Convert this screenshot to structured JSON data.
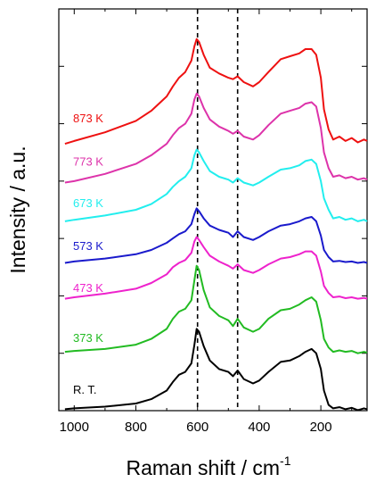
{
  "chart_data": {
    "type": "line",
    "xlabel": "Raman shift / cm",
    "xlabel_superscript": "-1",
    "ylabel": "Intensity / a.u.",
    "xlim": [
      1050,
      50
    ],
    "x_reversed": true,
    "ylim": [
      0,
      14
    ],
    "y_ticks_labeled": false,
    "grid": false,
    "x_ticks": [
      1000,
      800,
      600,
      400,
      200
    ],
    "x_tick_labels": [
      "1000",
      "800",
      "600",
      "400",
      "200"
    ],
    "reference_lines_x": [
      600,
      470
    ],
    "reference_line_style": "dashed",
    "series": [
      {
        "name": "R. T.",
        "color": "#000000",
        "x": [
          1030,
          1000,
          900,
          800,
          750,
          700,
          680,
          660,
          640,
          620,
          610,
          603,
          595,
          580,
          560,
          530,
          500,
          485,
          470,
          450,
          420,
          400,
          370,
          330,
          300,
          270,
          250,
          230,
          215,
          200,
          190,
          175,
          160,
          140,
          120,
          100,
          80,
          60,
          50
        ],
        "y": [
          0.05,
          0.08,
          0.14,
          0.25,
          0.4,
          0.7,
          1.0,
          1.25,
          1.35,
          1.65,
          2.3,
          2.85,
          2.75,
          2.25,
          1.75,
          1.45,
          1.35,
          1.2,
          1.4,
          1.1,
          0.95,
          1.05,
          1.35,
          1.7,
          1.75,
          1.9,
          2.05,
          2.15,
          2.0,
          1.45,
          0.7,
          0.2,
          0.08,
          0.12,
          0.05,
          0.1,
          0.02,
          0.08,
          0.05
        ]
      },
      {
        "name": "373 K",
        "color": "#22bb22",
        "x": [
          1030,
          1000,
          900,
          800,
          750,
          700,
          680,
          660,
          640,
          620,
          610,
          603,
          595,
          580,
          560,
          530,
          500,
          485,
          470,
          450,
          420,
          400,
          370,
          330,
          300,
          270,
          250,
          230,
          215,
          200,
          190,
          175,
          160,
          140,
          120,
          100,
          80,
          60,
          50
        ],
        "y": [
          2.05,
          2.08,
          2.15,
          2.3,
          2.5,
          2.85,
          3.2,
          3.45,
          3.55,
          3.85,
          4.55,
          5.05,
          4.9,
          4.2,
          3.6,
          3.3,
          3.15,
          2.95,
          3.2,
          2.9,
          2.75,
          2.85,
          3.2,
          3.5,
          3.55,
          3.7,
          3.85,
          3.95,
          3.8,
          3.15,
          2.5,
          2.2,
          2.05,
          2.1,
          2.05,
          2.08,
          2.0,
          2.05,
          2.02
        ]
      },
      {
        "name": "473 K",
        "color": "#ee22cc",
        "x": [
          1030,
          1000,
          900,
          800,
          750,
          700,
          680,
          660,
          640,
          620,
          610,
          603,
          595,
          580,
          560,
          530,
          500,
          485,
          470,
          450,
          420,
          400,
          370,
          330,
          300,
          270,
          250,
          230,
          215,
          200,
          190,
          175,
          160,
          140,
          120,
          100,
          80,
          60,
          50
        ],
        "y": [
          3.9,
          3.95,
          4.08,
          4.25,
          4.45,
          4.75,
          5.0,
          5.15,
          5.25,
          5.5,
          5.9,
          6.05,
          5.95,
          5.7,
          5.4,
          5.2,
          5.05,
          4.95,
          5.1,
          4.9,
          4.8,
          4.9,
          5.1,
          5.3,
          5.35,
          5.45,
          5.55,
          5.55,
          5.4,
          4.85,
          4.35,
          4.1,
          3.95,
          3.98,
          3.92,
          3.95,
          3.9,
          3.93,
          3.9
        ]
      },
      {
        "name": "573 K",
        "color": "#1a1acc",
        "x": [
          1030,
          1000,
          900,
          800,
          750,
          700,
          680,
          660,
          640,
          620,
          610,
          603,
          595,
          580,
          560,
          530,
          500,
          485,
          470,
          450,
          420,
          400,
          370,
          330,
          300,
          270,
          250,
          230,
          215,
          200,
          190,
          175,
          160,
          140,
          120,
          100,
          80,
          60,
          50
        ],
        "y": [
          5.15,
          5.2,
          5.3,
          5.45,
          5.6,
          5.85,
          6.0,
          6.15,
          6.25,
          6.5,
          6.85,
          7.05,
          6.95,
          6.7,
          6.45,
          6.3,
          6.2,
          6.05,
          6.25,
          6.05,
          5.95,
          6.05,
          6.25,
          6.45,
          6.5,
          6.6,
          6.7,
          6.75,
          6.6,
          6.1,
          5.6,
          5.35,
          5.2,
          5.22,
          5.18,
          5.2,
          5.15,
          5.18,
          5.15
        ]
      },
      {
        "name": "673 K",
        "color": "#22eeee",
        "x": [
          1030,
          1000,
          900,
          800,
          750,
          700,
          680,
          660,
          640,
          620,
          610,
          603,
          595,
          580,
          560,
          530,
          500,
          485,
          470,
          450,
          420,
          400,
          370,
          330,
          300,
          270,
          250,
          230,
          215,
          200,
          190,
          175,
          160,
          140,
          120,
          100,
          80,
          60,
          50
        ],
        "y": [
          6.6,
          6.65,
          6.8,
          7.0,
          7.2,
          7.55,
          7.8,
          8.0,
          8.15,
          8.45,
          8.9,
          9.1,
          9.0,
          8.7,
          8.35,
          8.15,
          8.05,
          7.95,
          8.1,
          7.95,
          7.85,
          7.95,
          8.15,
          8.4,
          8.45,
          8.55,
          8.7,
          8.75,
          8.6,
          8.0,
          7.4,
          7.0,
          6.7,
          6.75,
          6.65,
          6.7,
          6.6,
          6.65,
          6.6
        ]
      },
      {
        "name": "773 K",
        "color": "#dd33aa",
        "x": [
          1030,
          1000,
          900,
          800,
          750,
          700,
          680,
          660,
          640,
          620,
          610,
          603,
          595,
          580,
          560,
          530,
          500,
          485,
          470,
          450,
          420,
          400,
          370,
          330,
          300,
          270,
          250,
          230,
          215,
          200,
          190,
          175,
          160,
          140,
          120,
          100,
          80,
          60,
          50
        ],
        "y": [
          7.95,
          8.0,
          8.25,
          8.6,
          8.9,
          9.3,
          9.6,
          9.85,
          10.0,
          10.35,
          10.85,
          11.05,
          10.95,
          10.55,
          10.15,
          9.9,
          9.75,
          9.65,
          9.75,
          9.55,
          9.45,
          9.6,
          9.95,
          10.35,
          10.45,
          10.55,
          10.7,
          10.75,
          10.6,
          9.85,
          9.0,
          8.45,
          8.15,
          8.2,
          8.1,
          8.15,
          8.05,
          8.1,
          8.05
        ]
      },
      {
        "name": "873 K",
        "color": "#ee1111",
        "x": [
          1030,
          1000,
          900,
          800,
          750,
          700,
          680,
          660,
          640,
          620,
          610,
          603,
          595,
          580,
          560,
          530,
          500,
          485,
          470,
          450,
          420,
          400,
          370,
          330,
          300,
          270,
          250,
          230,
          215,
          200,
          190,
          175,
          160,
          140,
          120,
          100,
          80,
          60,
          50
        ],
        "y": [
          9.3,
          9.4,
          9.7,
          10.1,
          10.45,
          10.95,
          11.3,
          11.6,
          11.8,
          12.2,
          12.7,
          12.95,
          12.85,
          12.4,
          11.95,
          11.75,
          11.6,
          11.55,
          11.65,
          11.45,
          11.3,
          11.45,
          11.8,
          12.25,
          12.35,
          12.45,
          12.6,
          12.6,
          12.4,
          11.6,
          10.5,
          9.8,
          9.45,
          9.55,
          9.4,
          9.5,
          9.35,
          9.45,
          9.4
        ]
      }
    ],
    "label_y": [
      0.75,
      2.55,
      4.3,
      5.75,
      7.25,
      8.7,
      10.2
    ]
  }
}
